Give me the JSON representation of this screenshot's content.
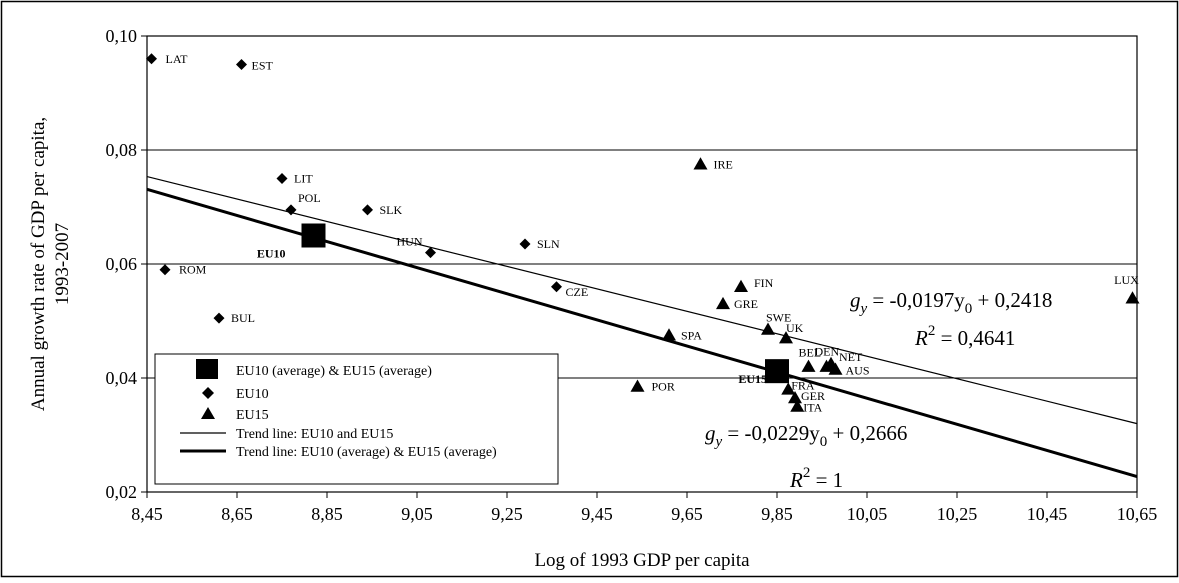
{
  "chart_data": {
    "type": "scatter",
    "xlabel": "Log of 1993 GDP per capita",
    "ylabel_lines": [
      "Annual growth rate of GDP per capita,",
      "1993-2007"
    ],
    "xlim": [
      8.45,
      10.65
    ],
    "ylim": [
      0.02,
      0.1
    ],
    "x_ticks": [
      "8,45",
      "8,65",
      "8,85",
      "9,05",
      "9,25",
      "9,45",
      "9,65",
      "9,85",
      "10,05",
      "10,25",
      "10,45",
      "10,65"
    ],
    "y_ticks": [
      "0,02",
      "0,04",
      "0,06",
      "0,08",
      "0,10"
    ],
    "grid": "horizontal",
    "legend_position": "bottom-left",
    "legend": [
      {
        "key": "average",
        "label": "EU10 (average) & EU15 (average)"
      },
      {
        "key": "eu10",
        "label": "EU10"
      },
      {
        "key": "eu15",
        "label": "EU15"
      },
      {
        "key": "trend_all",
        "label": "Trend line: EU10 and EU15"
      },
      {
        "key": "trend_avg",
        "label": "Trend line: EU10 (average) & EU15 (average)"
      }
    ],
    "series": [
      {
        "key": "eu10",
        "marker": "diamond",
        "points": [
          {
            "label": "LAT",
            "x": 8.46,
            "y": 0.096
          },
          {
            "label": "EST",
            "x": 8.66,
            "y": 0.095
          },
          {
            "label": "LIT",
            "x": 8.75,
            "y": 0.075
          },
          {
            "label": "POL",
            "x": 8.77,
            "y": 0.0695
          },
          {
            "label": "SLK",
            "x": 8.94,
            "y": 0.0695
          },
          {
            "label": "ROM",
            "x": 8.49,
            "y": 0.059
          },
          {
            "label": "HUN",
            "x": 9.08,
            "y": 0.062
          },
          {
            "label": "SLN",
            "x": 9.29,
            "y": 0.0635
          },
          {
            "label": "CZE",
            "x": 9.36,
            "y": 0.056
          },
          {
            "label": "BUL",
            "x": 8.61,
            "y": 0.0505
          }
        ]
      },
      {
        "key": "eu15",
        "marker": "triangle",
        "points": [
          {
            "label": "IRE",
            "x": 9.68,
            "y": 0.0775
          },
          {
            "label": "FIN",
            "x": 9.77,
            "y": 0.056
          },
          {
            "label": "GRE",
            "x": 9.73,
            "y": 0.053
          },
          {
            "label": "SWE",
            "x": 9.83,
            "y": 0.0485
          },
          {
            "label": "UK",
            "x": 9.87,
            "y": 0.047
          },
          {
            "label": "SPA",
            "x": 9.61,
            "y": 0.0475
          },
          {
            "label": "BEL",
            "x": 9.92,
            "y": 0.042
          },
          {
            "label": "DEN",
            "x": 9.96,
            "y": 0.042
          },
          {
            "label": "NET",
            "x": 9.97,
            "y": 0.0425
          },
          {
            "label": "AUS",
            "x": 9.98,
            "y": 0.0415
          },
          {
            "label": "POR",
            "x": 9.54,
            "y": 0.0385
          },
          {
            "label": "FRA",
            "x": 9.875,
            "y": 0.038
          },
          {
            "label": "GER",
            "x": 9.89,
            "y": 0.0365
          },
          {
            "label": "ITA",
            "x": 9.895,
            "y": 0.035
          },
          {
            "label": "LUX",
            "x": 10.64,
            "y": 0.054
          }
        ]
      },
      {
        "key": "average",
        "marker": "square",
        "points": [
          {
            "label": "EU10",
            "x": 8.82,
            "y": 0.065
          },
          {
            "label": "EU15",
            "x": 9.85,
            "y": 0.0412
          }
        ]
      }
    ],
    "trend_lines": [
      {
        "key": "trend_all",
        "slope": -0.0197,
        "intercept": 0.2418,
        "equation": "g_y = -0,0197y_0 + 0,2418",
        "r2": "R^2 = 0,4641",
        "eq_parts": [
          "g",
          "y",
          " = -0,0197y",
          "0",
          " + 0,2418"
        ],
        "r2_parts": [
          "R",
          "2",
          " = 0,4641"
        ]
      },
      {
        "key": "trend_avg",
        "slope": -0.0229,
        "intercept": 0.2666,
        "equation": "g_y = -0,0229y_0 + 0,2666",
        "r2": "R^2 = 1",
        "eq_parts": [
          "g",
          "y",
          " = -0,0229y",
          "0",
          " + 0,2666"
        ],
        "r2_parts": [
          "R",
          "2",
          " = 1"
        ]
      }
    ]
  }
}
